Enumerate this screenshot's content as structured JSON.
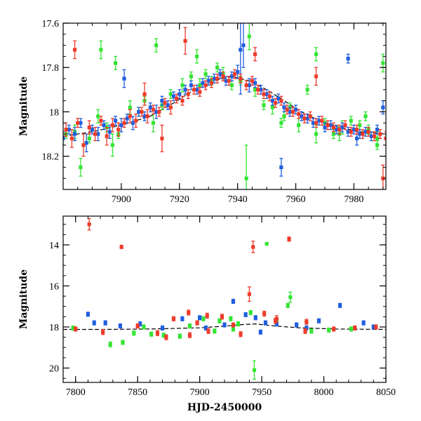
{
  "chart_data": [
    {
      "type": "scatter",
      "title": "",
      "xlabel": "",
      "ylabel": "Magnitude",
      "xlim": [
        7880,
        7991
      ],
      "ylim": [
        18.35,
        17.6
      ],
      "y_inverted": true,
      "xticks": [
        7900,
        7920,
        7940,
        7960,
        7980
      ],
      "yticks": [
        17.6,
        17.8,
        18,
        18.2
      ],
      "ytick_labels": [
        "17.6",
        "17.8",
        "18",
        "18.2"
      ],
      "grid": false,
      "legend": "none",
      "series_colors": {
        "green": "#33e533",
        "blue": "#1f5fe0",
        "red": "#ee3b2a",
        "model": "#000000"
      },
      "model_curve": {
        "x": [
          7880,
          7890,
          7900,
          7910,
          7918,
          7925,
          7932,
          7938,
          7944,
          7950,
          7956,
          7962,
          7968,
          7975,
          7982,
          7991
        ],
        "y": [
          18.11,
          18.09,
          18.06,
          18.02,
          17.96,
          17.9,
          17.86,
          17.84,
          17.86,
          17.9,
          17.95,
          18.0,
          18.04,
          18.07,
          18.09,
          18.1
        ]
      },
      "series": [
        {
          "color": "green",
          "x": [
            7881,
            7884,
            7886,
            7889,
            7892,
            7895,
            7897,
            7899,
            7903,
            7906,
            7908,
            7911,
            7914,
            7917,
            7921,
            7924,
            7927,
            7929,
            7931,
            7933,
            7935,
            7938,
            7941,
            7943,
            7946,
            7949,
            7952,
            7955,
            7958,
            7961,
            7964,
            7967,
            7970,
            7973,
            7976,
            7979,
            7982,
            7985,
            7988,
            7990,
            7893,
            7898,
            7912,
            7926,
            7944,
            7956,
            7967,
            7975,
            7984,
            7988
          ],
          "y": [
            18.1,
            18.09,
            18.25,
            18.12,
            18.02,
            18.07,
            18.15,
            18.1,
            17.98,
            18.0,
            17.95,
            18.05,
            17.97,
            17.92,
            17.88,
            17.84,
            17.88,
            17.83,
            17.86,
            17.8,
            17.83,
            17.88,
            17.86,
            18.3,
            17.9,
            17.97,
            17.98,
            18.05,
            17.98,
            18.06,
            17.9,
            18.1,
            18.05,
            18.1,
            18.07,
            18.04,
            18.06,
            18.08,
            18.12,
            17.78,
            17.72,
            17.78,
            17.7,
            17.75,
            17.66,
            18.02,
            17.74,
            18.1,
            18.02,
            18.15
          ],
          "err": [
            0.02,
            0.03,
            0.04,
            0.02,
            0.03,
            0.02,
            0.05,
            0.02,
            0.03,
            0.02,
            0.02,
            0.04,
            0.02,
            0.02,
            0.03,
            0.02,
            0.03,
            0.02,
            0.02,
            0.02,
            0.03,
            0.02,
            0.02,
            0.15,
            0.03,
            0.02,
            0.03,
            0.02,
            0.02,
            0.03,
            0.02,
            0.04,
            0.02,
            0.02,
            0.03,
            0.02,
            0.02,
            0.02,
            0.03,
            0.04,
            0.04,
            0.03,
            0.03,
            0.03,
            0.06,
            0.02,
            0.03,
            0.03,
            0.02,
            0.02
          ]
        },
        {
          "color": "blue",
          "x": [
            7880,
            7882,
            7884,
            7886,
            7888,
            7890,
            7892,
            7894,
            7896,
            7898,
            7900,
            7902,
            7904,
            7906,
            7908,
            7910,
            7912,
            7914,
            7916,
            7918,
            7920,
            7922,
            7924,
            7926,
            7928,
            7930,
            7932,
            7934,
            7936,
            7938,
            7940,
            7942,
            7944,
            7946,
            7948,
            7950,
            7952,
            7954,
            7956,
            7958,
            7960,
            7962,
            7964,
            7966,
            7968,
            7970,
            7972,
            7974,
            7976,
            7978,
            7980,
            7982,
            7984,
            7986,
            7988,
            7990,
            7901,
            7941,
            7955,
            7978,
            7981
          ],
          "y": [
            18.12,
            18.08,
            18.1,
            18.05,
            18.14,
            18.08,
            18.1,
            18.06,
            18.09,
            18.04,
            18.06,
            18.03,
            18.05,
            18.0,
            18.02,
            17.98,
            18.0,
            17.95,
            17.97,
            17.93,
            17.92,
            17.9,
            17.88,
            17.9,
            17.87,
            17.86,
            17.85,
            17.83,
            17.86,
            17.84,
            17.82,
            17.7,
            17.88,
            17.87,
            17.9,
            17.92,
            17.95,
            17.94,
            17.98,
            18.0,
            17.99,
            18.02,
            18.03,
            18.05,
            18.04,
            18.07,
            18.06,
            18.08,
            18.07,
            18.09,
            18.08,
            18.1,
            18.09,
            18.11,
            18.08,
            17.98,
            17.85,
            17.72,
            18.25,
            17.76,
            18.12
          ],
          "err": [
            0.03,
            0.02,
            0.03,
            0.02,
            0.04,
            0.02,
            0.03,
            0.02,
            0.03,
            0.02,
            0.03,
            0.02,
            0.03,
            0.02,
            0.02,
            0.02,
            0.03,
            0.02,
            0.02,
            0.02,
            0.02,
            0.02,
            0.02,
            0.02,
            0.02,
            0.02,
            0.02,
            0.02,
            0.02,
            0.02,
            0.03,
            0.1,
            0.03,
            0.02,
            0.02,
            0.02,
            0.02,
            0.02,
            0.02,
            0.02,
            0.02,
            0.02,
            0.02,
            0.02,
            0.02,
            0.02,
            0.02,
            0.02,
            0.02,
            0.02,
            0.02,
            0.02,
            0.02,
            0.02,
            0.02,
            0.03,
            0.04,
            0.2,
            0.04,
            0.02,
            0.03
          ]
        },
        {
          "color": "red",
          "x": [
            7881,
            7883,
            7885,
            7887,
            7889,
            7891,
            7893,
            7895,
            7897,
            7899,
            7901,
            7903,
            7905,
            7907,
            7909,
            7911,
            7913,
            7915,
            7917,
            7919,
            7921,
            7923,
            7925,
            7927,
            7929,
            7931,
            7933,
            7935,
            7937,
            7939,
            7941,
            7943,
            7945,
            7947,
            7949,
            7951,
            7953,
            7955,
            7957,
            7959,
            7961,
            7963,
            7965,
            7967,
            7969,
            7971,
            7973,
            7975,
            7977,
            7979,
            7981,
            7983,
            7985,
            7987,
            7989,
            7991,
            7884,
            7908,
            7914,
            7922,
            7946,
            7967,
            7990
          ],
          "y": [
            18.08,
            18.12,
            18.05,
            18.15,
            18.07,
            18.1,
            18.04,
            18.11,
            18.06,
            18.08,
            18.05,
            18.02,
            18.04,
            18.0,
            18.02,
            17.99,
            18.0,
            17.96,
            17.98,
            17.94,
            17.95,
            17.92,
            17.9,
            17.91,
            17.88,
            17.87,
            17.85,
            17.84,
            17.86,
            17.83,
            17.85,
            17.88,
            17.86,
            17.9,
            17.92,
            17.93,
            17.96,
            17.95,
            17.99,
            18.0,
            18.01,
            18.03,
            18.02,
            18.05,
            18.04,
            18.06,
            18.07,
            18.08,
            18.06,
            18.09,
            18.08,
            18.1,
            18.09,
            18.11,
            18.1,
            18.12,
            17.72,
            17.92,
            18.12,
            17.68,
            17.74,
            17.84,
            18.3
          ],
          "err": [
            0.03,
            0.04,
            0.02,
            0.05,
            0.03,
            0.03,
            0.02,
            0.04,
            0.03,
            0.03,
            0.02,
            0.03,
            0.03,
            0.02,
            0.03,
            0.02,
            0.02,
            0.02,
            0.03,
            0.02,
            0.02,
            0.02,
            0.02,
            0.02,
            0.02,
            0.02,
            0.02,
            0.02,
            0.02,
            0.02,
            0.02,
            0.02,
            0.02,
            0.02,
            0.02,
            0.02,
            0.02,
            0.02,
            0.02,
            0.02,
            0.02,
            0.02,
            0.02,
            0.02,
            0.02,
            0.02,
            0.02,
            0.02,
            0.02,
            0.02,
            0.02,
            0.02,
            0.02,
            0.02,
            0.02,
            0.03,
            0.04,
            0.05,
            0.06,
            0.06,
            0.03,
            0.04,
            0.06
          ]
        }
      ]
    },
    {
      "type": "scatter",
      "title": "",
      "xlabel": "HJD-2450000",
      "ylabel": "Magnitude",
      "xlim": [
        7790,
        8050
      ],
      "ylim": [
        20.7,
        12.6
      ],
      "y_inverted": true,
      "xticks": [
        7800,
        7850,
        7900,
        7950,
        8000,
        8050
      ],
      "yticks": [
        14,
        16,
        18,
        20
      ],
      "ytick_labels": [
        "14",
        "16",
        "18",
        "20"
      ],
      "grid": false,
      "legend": "none",
      "series_colors": {
        "green": "#33e533",
        "blue": "#1f5fe0",
        "red": "#ee3b2a",
        "model": "#000000"
      },
      "model_curve": {
        "x": [
          7790,
          7820,
          7860,
          7900,
          7920,
          7935,
          7945,
          7960,
          7980,
          8010,
          8050
        ],
        "y": [
          18.12,
          18.12,
          18.1,
          18.04,
          17.96,
          17.88,
          17.85,
          17.95,
          18.04,
          18.1,
          18.12
        ]
      },
      "series": [
        {
          "color": "green",
          "x": [
            7798,
            7828,
            7838,
            7861,
            7892,
            7903,
            7916,
            7927,
            7931,
            7941,
            7944,
            7954,
            7971,
            7973,
            7871,
            7884,
            7847,
            7912,
            7962,
            7990,
            8004,
            8022,
            7855,
            7925
          ],
          "y": [
            18.05,
            18.85,
            18.75,
            18.35,
            17.95,
            17.6,
            17.7,
            18.1,
            17.85,
            17.3,
            20.1,
            13.95,
            16.95,
            16.55,
            18.4,
            18.45,
            18.3,
            18.2,
            17.75,
            18.2,
            18.15,
            18.1,
            18.0,
            17.6
          ],
          "err": [
            0.1,
            0.12,
            0.1,
            0.1,
            0.1,
            0.1,
            0.1,
            0.1,
            0.1,
            0.1,
            0.45,
            0.05,
            0.1,
            0.25,
            0.1,
            0.1,
            0.1,
            0.1,
            0.1,
            0.1,
            0.1,
            0.1,
            0.1,
            0.1
          ]
        },
        {
          "color": "blue",
          "x": [
            7810,
            7824,
            7836,
            7852,
            7870,
            7886,
            7905,
            7920,
            7927,
            7937,
            7945,
            7953,
            7962,
            7978,
            7996,
            8013,
            8032,
            8040,
            7815,
            7900,
            7949,
            7986
          ],
          "y": [
            17.38,
            17.8,
            17.95,
            17.85,
            18.05,
            17.6,
            18.05,
            17.9,
            16.75,
            17.4,
            17.55,
            17.8,
            17.85,
            17.9,
            17.7,
            16.95,
            17.8,
            18.0,
            17.8,
            17.55,
            18.25,
            18.05
          ],
          "err": [
            0.1,
            0.1,
            0.1,
            0.1,
            0.1,
            0.1,
            0.1,
            0.1,
            0.1,
            0.1,
            0.1,
            0.1,
            0.1,
            0.1,
            0.1,
            0.1,
            0.1,
            0.1,
            0.1,
            0.1,
            0.1,
            0.1
          ]
        },
        {
          "color": "red",
          "x": [
            7800,
            7811,
            7822,
            7837,
            7850,
            7866,
            7879,
            7891,
            7898,
            7907,
            7918,
            7927,
            7940,
            7943,
            7952,
            7962,
            7972,
            7986,
            8008,
            8025,
            8042,
            7873,
            7892,
            7906,
            7933,
            7961,
            7985
          ],
          "y": [
            18.1,
            13.0,
            18.25,
            14.1,
            17.95,
            18.3,
            17.6,
            17.3,
            17.8,
            18.2,
            17.5,
            17.9,
            16.4,
            14.1,
            17.35,
            17.6,
            13.72,
            17.75,
            18.1,
            18.05,
            18.0,
            18.5,
            18.4,
            17.45,
            18.35,
            17.7,
            18.2
          ],
          "err": [
            0.1,
            0.28,
            0.12,
            0.08,
            0.1,
            0.12,
            0.1,
            0.12,
            0.1,
            0.12,
            0.12,
            0.1,
            0.35,
            0.28,
            0.12,
            0.15,
            0.1,
            0.12,
            0.1,
            0.1,
            0.1,
            0.12,
            0.12,
            0.12,
            0.12,
            0.12,
            0.12
          ]
        }
      ]
    }
  ]
}
